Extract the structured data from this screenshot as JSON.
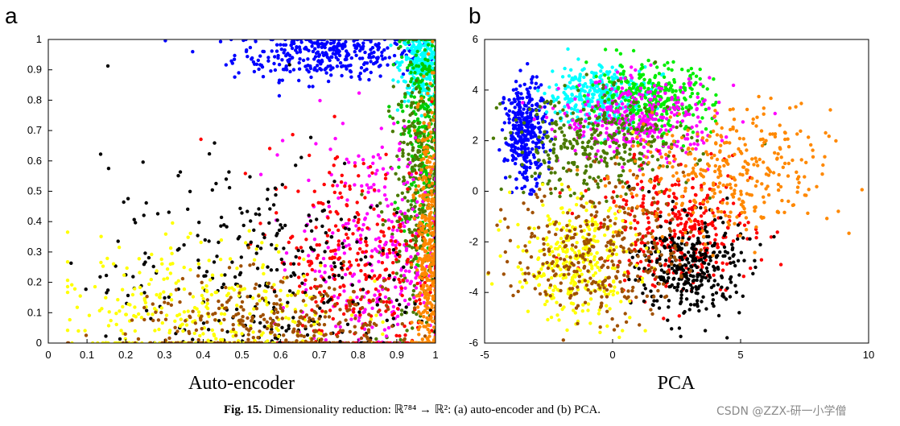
{
  "panels": [
    {
      "letter": "a",
      "xlabel": "Auto-encoder"
    },
    {
      "letter": "b",
      "xlabel": "PCA"
    }
  ],
  "caption": {
    "label": "Fig. 15.",
    "text": "Dimensionality reduction: ℝ⁷⁸⁴ → ℝ²: (a) auto-encoder and (b) PCA."
  },
  "watermark": "CSDN @ZZX-研一小学僧",
  "chart_data": [
    {
      "type": "scatter",
      "title": "",
      "xlabel": "Auto-encoder",
      "ylabel": "",
      "xlim": [
        0,
        1
      ],
      "ylim": [
        0,
        1
      ],
      "xticks": [
        "0",
        "0.1",
        "0.2",
        "0.3",
        "0.4",
        "0.5",
        "0.6",
        "0.7",
        "0.8",
        "0.9",
        "1"
      ],
      "yticks": [
        "0",
        "0.1",
        "0.2",
        "0.3",
        "0.4",
        "0.5",
        "0.6",
        "0.7",
        "0.8",
        "0.9",
        "1"
      ],
      "grid": false,
      "series": [
        {
          "color": "#0000ff",
          "cluster": {
            "cx": 0.72,
            "cy": 0.95,
            "sx": 0.12,
            "sy": 0.04
          }
        },
        {
          "color": "#00ffff",
          "cluster": {
            "cx": 0.97,
            "cy": 0.92,
            "sx": 0.03,
            "sy": 0.06
          }
        },
        {
          "color": "#00cc00",
          "cluster": {
            "cx": 0.97,
            "cy": 0.7,
            "sx": 0.03,
            "sy": 0.2
          }
        },
        {
          "color": "#4a7a00",
          "cluster": {
            "cx": 0.96,
            "cy": 0.45,
            "sx": 0.04,
            "sy": 0.25
          }
        },
        {
          "color": "#ff00ff",
          "cluster": {
            "cx": 0.85,
            "cy": 0.3,
            "sx": 0.1,
            "sy": 0.2
          }
        },
        {
          "color": "#ff0000",
          "cluster": {
            "cx": 0.8,
            "cy": 0.25,
            "sx": 0.12,
            "sy": 0.2
          }
        },
        {
          "color": "#000000",
          "cluster": {
            "cx": 0.55,
            "cy": 0.2,
            "sx": 0.2,
            "sy": 0.2
          }
        },
        {
          "color": "#ffff00",
          "cluster": {
            "cx": 0.4,
            "cy": 0.1,
            "sx": 0.18,
            "sy": 0.12
          }
        },
        {
          "color": "#a05000",
          "cluster": {
            "cx": 0.6,
            "cy": 0.05,
            "sx": 0.2,
            "sy": 0.08
          }
        },
        {
          "color": "#ff8800",
          "cluster": {
            "cx": 0.98,
            "cy": 0.3,
            "sx": 0.015,
            "sy": 0.25
          }
        }
      ]
    },
    {
      "type": "scatter",
      "title": "",
      "xlabel": "PCA",
      "ylabel": "",
      "xlim": [
        -5,
        10
      ],
      "ylim": [
        -6,
        6
      ],
      "xticks": [
        "-5",
        "0",
        "5",
        "10"
      ],
      "yticks": [
        "-6",
        "-4",
        "-2",
        "0",
        "2",
        "4",
        "6"
      ],
      "grid": false,
      "series": [
        {
          "color": "#0000ff",
          "cluster": {
            "cx": -3.4,
            "cy": 2.3,
            "sx": 0.4,
            "sy": 1.0
          }
        },
        {
          "color": "#00ffff",
          "cluster": {
            "cx": -0.5,
            "cy": 3.8,
            "sx": 1.0,
            "sy": 0.6
          }
        },
        {
          "color": "#00ee00",
          "cluster": {
            "cx": 1.5,
            "cy": 3.6,
            "sx": 1.2,
            "sy": 0.7
          }
        },
        {
          "color": "#ff00ff",
          "cluster": {
            "cx": 1.0,
            "cy": 2.8,
            "sx": 1.5,
            "sy": 0.8
          }
        },
        {
          "color": "#4a7a00",
          "cluster": {
            "cx": -0.5,
            "cy": 1.8,
            "sx": 1.8,
            "sy": 1.0
          }
        },
        {
          "color": "#ff0000",
          "cluster": {
            "cx": 2.5,
            "cy": -1.5,
            "sx": 1.5,
            "sy": 1.2
          }
        },
        {
          "color": "#000000",
          "cluster": {
            "cx": 3.0,
            "cy": -3.0,
            "sx": 1.0,
            "sy": 1.0
          }
        },
        {
          "color": "#ffff00",
          "cluster": {
            "cx": -1.5,
            "cy": -2.8,
            "sx": 1.2,
            "sy": 1.2
          }
        },
        {
          "color": "#a05000",
          "cluster": {
            "cx": -0.5,
            "cy": -2.3,
            "sx": 1.6,
            "sy": 1.4
          }
        },
        {
          "color": "#ff8800",
          "cluster": {
            "cx": 4.5,
            "cy": 0.6,
            "sx": 2.0,
            "sy": 1.3
          }
        }
      ]
    }
  ]
}
